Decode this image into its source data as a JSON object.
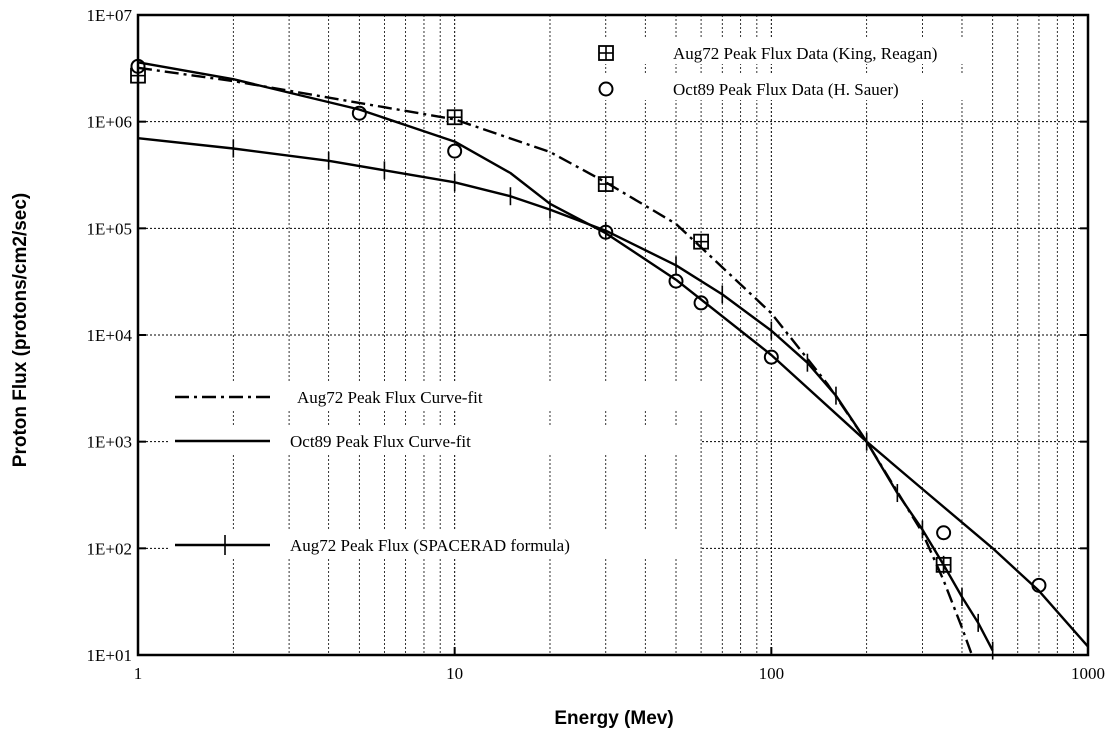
{
  "chart_data": {
    "type": "line",
    "title": "",
    "xlabel": "Energy  (Mev)",
    "ylabel": "Proton  Flux  (protons/cm2/sec)",
    "xscale": "log",
    "yscale": "log",
    "xlim": [
      1,
      1000
    ],
    "ylim": [
      10,
      10000000
    ],
    "grid": "dotted, major and minor",
    "x_tick_labels": [
      "1",
      "10",
      "100",
      "1000"
    ],
    "y_tick_labels": [
      "1E+01",
      "1E+02",
      "1E+03",
      "1E+04",
      "1E+05",
      "1E+06",
      "1E+07"
    ],
    "series": [
      {
        "name": "Aug72 Peak Flux Data (King, Reagan)",
        "kind": "markers",
        "marker": "boxed-plus",
        "x": [
          1,
          10,
          30,
          60,
          350
        ],
        "y": [
          2700000,
          1100000,
          260000,
          75000,
          70
        ]
      },
      {
        "name": "Oct89 Peak Flux Data (H. Sauer)",
        "kind": "markers",
        "marker": "circle",
        "x": [
          1,
          5,
          10,
          30,
          50,
          60,
          100,
          350,
          700
        ],
        "y": [
          3300000,
          1200000,
          530000,
          92000,
          32000,
          20000,
          6200,
          140,
          45
        ]
      },
      {
        "name": "Aug72 Peak Flux Curve-fit",
        "kind": "line",
        "dash": "dash-dot",
        "x": [
          1,
          2,
          5,
          10,
          20,
          30,
          50,
          100,
          150,
          200,
          300,
          350,
          400,
          430
        ],
        "y": [
          3200000,
          2400000,
          1500000,
          1050000,
          520000,
          270000,
          110000,
          16000,
          3500,
          1000,
          140,
          50,
          18,
          10
        ]
      },
      {
        "name": "Oct89 Peak Flux Curve-fit",
        "kind": "line",
        "dash": "solid",
        "x": [
          1,
          2,
          5,
          10,
          15,
          20,
          30,
          50,
          100,
          200,
          300,
          500,
          700,
          1000
        ],
        "y": [
          3600000,
          2500000,
          1300000,
          650000,
          330000,
          170000,
          90000,
          33000,
          6500,
          1000,
          360,
          100,
          40,
          12
        ]
      },
      {
        "name": "Aug72 Peak Flux (SPACERAD formula)",
        "kind": "line",
        "dash": "solid",
        "marker": "vertical-tick",
        "x": [
          1,
          2,
          4,
          6,
          10,
          15,
          20,
          30,
          50,
          70,
          100,
          130,
          160,
          200,
          250,
          300,
          350,
          400,
          450,
          500
        ],
        "y": [
          700000,
          560000,
          430000,
          350000,
          270000,
          200000,
          150000,
          95000,
          45000,
          24000,
          11000,
          5500,
          2700,
          1000,
          330,
          150,
          70,
          35,
          20,
          11
        ]
      }
    ],
    "legend": {
      "top_right": [
        "Aug72 Peak Flux Data (King, Reagan)",
        "Oct89 Peak Flux Data (H. Sauer)"
      ],
      "middle_left": [
        "Aug72 Peak Flux Curve-fit",
        "Oct89 Peak Flux Curve-fit",
        "Aug72 Peak Flux (SPACERAD formula)"
      ]
    }
  }
}
